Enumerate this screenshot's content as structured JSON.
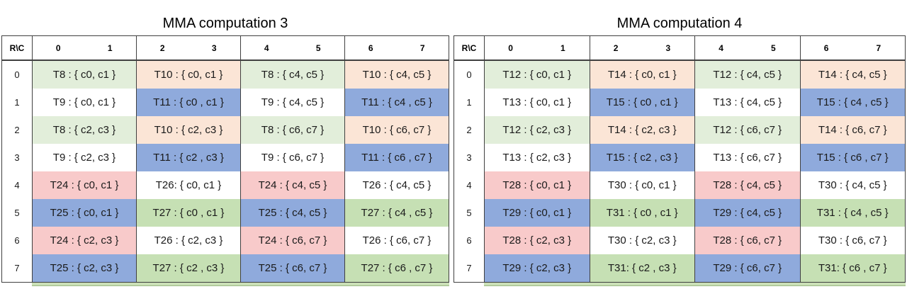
{
  "page": {
    "background": "#ffffff"
  },
  "colors": {
    "green_light": "#e2eeda",
    "peach": "#fbe5d6",
    "white": "#ffffff",
    "blue": "#8faadc",
    "pink": "#f8caca",
    "green_medium": "#c6e0b4",
    "border": "#404040",
    "strip_fill": "#cadfb6",
    "strip_edge": "#9cba83"
  },
  "row_fill_pattern": [
    [
      "green_light",
      "peach",
      "green_light",
      "peach"
    ],
    [
      "white",
      "blue",
      "white",
      "blue"
    ],
    [
      "green_light",
      "peach",
      "green_light",
      "peach"
    ],
    [
      "white",
      "blue",
      "white",
      "blue"
    ],
    [
      "pink",
      "white",
      "pink",
      "white"
    ],
    [
      "blue",
      "green_medium",
      "blue",
      "green_medium"
    ],
    [
      "pink",
      "white",
      "pink",
      "white"
    ],
    [
      "blue",
      "green_medium",
      "blue",
      "green_medium"
    ]
  ],
  "tables": [
    {
      "title": "MMA computation 3",
      "corner_label": "R\\C",
      "column_headers": [
        "0",
        "1",
        "2",
        "3",
        "4",
        "5",
        "6",
        "7"
      ],
      "row_labels": [
        "0",
        "1",
        "2",
        "3",
        "4",
        "5",
        "6",
        "7"
      ],
      "rows": [
        [
          "T8 : { c0, c1 }",
          "T10 : { c0, c1 }",
          "T8 : { c4, c5 }",
          "T10 : { c4, c5 }"
        ],
        [
          "T9 : { c0, c1 }",
          "T11 : { c0 , c1 }",
          "T9 : { c4, c5 }",
          "T11 : { c4 , c5 }"
        ],
        [
          "T8 : { c2, c3 }",
          "T10 : { c2, c3 }",
          "T8 : { c6, c7 }",
          "T10 : { c6, c7 }"
        ],
        [
          "T9 : { c2, c3 }",
          "T11 : { c2 , c3 }",
          "T9 : { c6, c7 }",
          "T11 : { c6 , c7 }"
        ],
        [
          "T24 : { c0, c1 }",
          "T26: { c0, c1 }",
          "T24 : { c4, c5 }",
          "T26 : { c4, c5 }"
        ],
        [
          "T25 : { c0, c1 }",
          "T27 : { c0 , c1 }",
          "T25 : { c4, c5 }",
          "T27 : { c4 , c5 }"
        ],
        [
          "T24 : { c2, c3 }",
          "T26 : { c2, c3 }",
          "T24 : { c6, c7 }",
          "T26 : { c6, c7 }"
        ],
        [
          "T25 : { c2, c3 }",
          "T27 : { c2 , c3 }",
          "T25 : { c6, c7 }",
          "T27 : { c6 , c7 }"
        ]
      ]
    },
    {
      "title": "MMA computation 4",
      "corner_label": "R\\C",
      "column_headers": [
        "0",
        "1",
        "2",
        "3",
        "4",
        "5",
        "6",
        "7"
      ],
      "row_labels": [
        "0",
        "1",
        "2",
        "3",
        "4",
        "5",
        "6",
        "7"
      ],
      "rows": [
        [
          "T12 : { c0, c1 }",
          "T14 : { c0, c1 }",
          "T12 : { c4, c5 }",
          "T14 : { c4, c5 }"
        ],
        [
          "T13 : { c0, c1 }",
          "T15 : { c0 , c1 }",
          "T13 : { c4, c5 }",
          "T15 : { c4 , c5 }"
        ],
        [
          "T12 : { c2, c3 }",
          "T14 : { c2, c3 }",
          "T12 : { c6, c7 }",
          "T14 : { c6, c7 }"
        ],
        [
          "T13 : { c2, c3 }",
          "T15 : { c2 , c3 }",
          "T13 : { c6, c7 }",
          "T15 : { c6 , c7 }"
        ],
        [
          "T28 : { c0, c1 }",
          "T30 : { c0, c1 }",
          "T28 : { c4, c5 }",
          "T30 : { c4, c5 }"
        ],
        [
          "T29 : { c0, c1 }",
          "T31 : { c0 , c1 }",
          "T29 : { c4, c5 }",
          "T31 : { c4 , c5 }"
        ],
        [
          "T28 : { c2, c3 }",
          "T30 : { c2, c3 }",
          "T28 : { c6, c7 }",
          "T30 : { c6, c7 }"
        ],
        [
          "T29 : { c2, c3 }",
          "T31: { c2 , c3 }",
          "T29 : { c6, c7 }",
          "T31: { c6 , c7 }"
        ]
      ]
    }
  ]
}
